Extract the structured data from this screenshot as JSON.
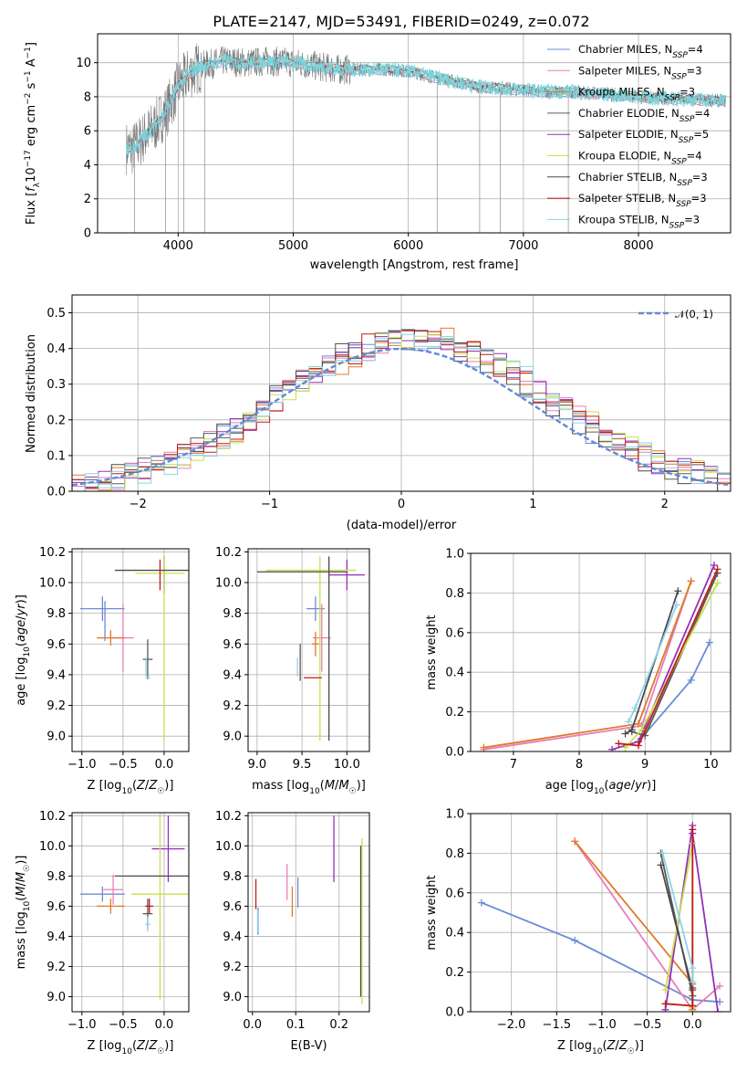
{
  "title": "PLATE=2147, MJD=53491, FIBERID=0249, z=0.072",
  "colors": {
    "chabrier_miles": "#6b8bd6",
    "salpeter_miles": "#e77fb9",
    "kroupa_miles": "#e0792a",
    "chabrier_elodie": "#5a5a5a",
    "salpeter_elodie": "#9330b8",
    "kroupa_elodie": "#c8e04a",
    "chabrier_stelib": "#4a4a4a",
    "salpeter_stelib": "#c21a1a",
    "kroupa_stelib": "#8cd4e6",
    "normal_curve": "#5f8ad8",
    "data_spectrum": "#7a7a7a",
    "model_cyan": "#78d7e0"
  },
  "chart_data": [
    {
      "id": "spectrum",
      "type": "line",
      "xlabel": "wavelength [Angstrom, rest frame]",
      "ylabel": "Flux [fλ10⁻¹⁷ erg cm⁻² s⁻¹ A⁻¹]",
      "xlim": [
        3300,
        8800
      ],
      "ylim": [
        0,
        11.7
      ],
      "xticks": [
        "4000",
        "5000",
        "6000",
        "7000",
        "8000"
      ],
      "xtick_values": [
        4000,
        5000,
        6000,
        7000,
        8000
      ],
      "yticks": [
        "0",
        "2",
        "4",
        "6",
        "8",
        "10"
      ],
      "ytick_values": [
        0,
        2,
        4,
        6,
        8,
        10
      ],
      "legend_position": "right",
      "legend": [
        "Chabrier MILES, N_SSP=4",
        "Salpeter MILES, N_SSP=3",
        "Kroupa MILES, N_SSP=3",
        "Chabrier ELODIE, N_SSP=4",
        "Salpeter ELODIE, N_SSP=5",
        "Kroupa ELODIE, N_SSP=4",
        "Chabrier STELIB, N_SSP=3",
        "Salpeter STELIB, N_SSP=3",
        "Kroupa STELIB, N_SSP=3"
      ],
      "continuum": {
        "x": [
          3550,
          3600,
          3700,
          3800,
          3900,
          4000,
          4100,
          4200,
          4400,
          4600,
          4800,
          5000,
          5200,
          5400,
          5600,
          5800,
          6000,
          6200,
          6400,
          6600,
          6800,
          7000,
          7200,
          7400,
          7600,
          7800,
          8000,
          8200,
          8400,
          8600,
          8750
        ],
        "y": [
          5.0,
          4.9,
          5.6,
          6.3,
          7.2,
          8.6,
          9.4,
          9.8,
          10.1,
          10.0,
          10.1,
          10.0,
          9.8,
          9.6,
          9.6,
          9.6,
          9.5,
          9.2,
          8.9,
          8.6,
          8.5,
          8.4,
          8.3,
          8.3,
          8.2,
          8.1,
          8.0,
          7.9,
          7.85,
          7.8,
          7.75
        ]
      }
    },
    {
      "id": "residuals",
      "type": "step",
      "xlabel": "(data-model)/error",
      "ylabel": "Normed distribution",
      "xlim": [
        -2.5,
        2.5
      ],
      "ylim": [
        0,
        0.55
      ],
      "xticks": [
        "−2",
        "−1",
        "0",
        "1",
        "2"
      ],
      "xtick_values": [
        -2,
        -1,
        0,
        1,
        2
      ],
      "yticks": [
        "0.0",
        "0.1",
        "0.2",
        "0.3",
        "0.4",
        "0.5"
      ],
      "ytick_values": [
        0,
        0.1,
        0.2,
        0.3,
        0.4,
        0.5
      ],
      "legend": [
        "𝒩(0, 1)"
      ],
      "legend_position": "top-right",
      "bin_width": 0.1
    },
    {
      "id": "age_vs_Z",
      "type": "errorbar",
      "xlabel": "Z [log10(Z/Z☉)]",
      "ylabel": "age [log10(age/yr)]",
      "xlim": [
        -1.12,
        0.3
      ],
      "ylim": [
        8.9,
        10.22
      ],
      "xticks": [
        "−1.0",
        "−0.5",
        "0.0"
      ],
      "xtick_values": [
        -1.0,
        -0.5,
        0.0
      ],
      "yticks": [
        "9.0",
        "9.2",
        "9.4",
        "9.6",
        "9.8",
        "10.0",
        "10.2"
      ],
      "ytick_values": [
        9.0,
        9.2,
        9.4,
        9.6,
        9.8,
        10.0,
        10.2
      ],
      "points": [
        {
          "x": -0.75,
          "y": 9.83,
          "xerr": 0.27,
          "yerr": 0.08,
          "c": "chabrier_miles"
        },
        {
          "x": -0.72,
          "y": 9.75,
          "xerr": 0.0,
          "yerr": 0.13,
          "c": "chabrier_miles"
        },
        {
          "x": -0.5,
          "y": 9.64,
          "xerr": 0.13,
          "yerr": 0.22,
          "c": "salpeter_miles"
        },
        {
          "x": -0.65,
          "y": 9.64,
          "xerr": 0.17,
          "yerr": 0.05,
          "c": "kroupa_miles"
        },
        {
          "x": -0.2,
          "y": 9.5,
          "xerr": 0.06,
          "yerr": 0.13,
          "c": "chabrier_elodie"
        },
        {
          "x": 0.0,
          "y": 10.05,
          "xerr": 0.0,
          "yerr": 0.12,
          "c": "salpeter_elodie"
        },
        {
          "x": 0.0,
          "y": 9.57,
          "xerr": 0.0,
          "yerr": 0.6,
          "c": "kroupa_elodie"
        },
        {
          "x": -0.15,
          "y": 10.08,
          "xerr": 0.45,
          "yerr": 0.0,
          "c": "chabrier_stelib"
        },
        {
          "x": -0.05,
          "y": 10.06,
          "xerr": 0.3,
          "yerr": 0.0,
          "c": "kroupa_elodie"
        },
        {
          "x": -0.05,
          "y": 10.05,
          "xerr": 0.0,
          "yerr": 0.1,
          "c": "salpeter_stelib"
        },
        {
          "x": -0.2,
          "y": 9.38,
          "xerr": 0.03,
          "yerr": 0.0,
          "c": "kroupa_stelib"
        },
        {
          "x": -0.22,
          "y": 9.45,
          "xerr": 0.0,
          "yerr": 0.06,
          "c": "kroupa_stelib"
        }
      ]
    },
    {
      "id": "age_vs_mass",
      "type": "errorbar",
      "xlabel": "mass [log10(M/M☉)]",
      "ylabel": "",
      "xlim": [
        8.9,
        10.25
      ],
      "ylim": [
        8.9,
        10.22
      ],
      "xticks": [
        "9.0",
        "9.5",
        "10.0"
      ],
      "xtick_values": [
        9.0,
        9.5,
        10.0
      ],
      "yticks": [
        "9.0",
        "9.2",
        "9.4",
        "9.6",
        "9.8",
        "10.0",
        "10.2"
      ],
      "ytick_values": [
        9.0,
        9.2,
        9.4,
        9.6,
        9.8,
        10.0,
        10.2
      ],
      "points": [
        {
          "x": 9.65,
          "y": 9.83,
          "xerr": 0.1,
          "yerr": 0.08,
          "c": "chabrier_miles"
        },
        {
          "x": 9.72,
          "y": 9.64,
          "xerr": 0.1,
          "yerr": 0.22,
          "c": "salpeter_miles"
        },
        {
          "x": 9.65,
          "y": 9.6,
          "xerr": 0.04,
          "yerr": 0.08,
          "c": "kroupa_miles"
        },
        {
          "x": 9.48,
          "y": 9.48,
          "xerr": 0.0,
          "yerr": 0.12,
          "c": "chabrier_elodie"
        },
        {
          "x": 10.0,
          "y": 10.05,
          "xerr": 0.2,
          "yerr": 0.1,
          "c": "salpeter_elodie"
        },
        {
          "x": 9.7,
          "y": 9.57,
          "xerr": 0.0,
          "yerr": 0.6,
          "c": "kroupa_elodie"
        },
        {
          "x": 9.5,
          "y": 10.07,
          "xerr": 0.5,
          "yerr": 0.0,
          "c": "chabrier_stelib"
        },
        {
          "x": 9.6,
          "y": 10.08,
          "xerr": 0.5,
          "yerr": 0.0,
          "c": "kroupa_elodie"
        },
        {
          "x": 9.8,
          "y": 9.57,
          "xerr": 0.0,
          "yerr": 0.6,
          "c": "chabrier_stelib"
        },
        {
          "x": 9.62,
          "y": 9.38,
          "xerr": 0.1,
          "yerr": 0.0,
          "c": "salpeter_stelib"
        },
        {
          "x": 9.45,
          "y": 9.45,
          "xerr": 0.0,
          "yerr": 0.06,
          "c": "kroupa_stelib"
        }
      ]
    },
    {
      "id": "weight_vs_age",
      "type": "line",
      "xlabel": "age [log10(age/yr)]",
      "ylabel": "mass weight",
      "xlim": [
        6.35,
        10.3
      ],
      "ylim": [
        0,
        1.0
      ],
      "xticks": [
        "7",
        "8",
        "9",
        "10"
      ],
      "xtick_values": [
        7,
        8,
        9,
        10
      ],
      "yticks": [
        "0.0",
        "0.2",
        "0.4",
        "0.6",
        "0.8",
        "1.0"
      ],
      "ytick_values": [
        0,
        0.2,
        0.4,
        0.6,
        0.8,
        1.0
      ],
      "series": [
        {
          "c": "chabrier_miles",
          "x": [
            8.9,
            9.7,
            9.98
          ],
          "y": [
            0.05,
            0.36,
            0.55
          ]
        },
        {
          "c": "salpeter_miles",
          "x": [
            6.55,
            8.95,
            9.7
          ],
          "y": [
            0.01,
            0.13,
            0.86
          ]
        },
        {
          "c": "kroupa_miles",
          "x": [
            6.55,
            8.9,
            9.7
          ],
          "y": [
            0.02,
            0.14,
            0.86
          ]
        },
        {
          "c": "chabrier_elodie",
          "x": [
            8.8,
            9.0,
            10.1
          ],
          "y": [
            0.1,
            0.08,
            0.9
          ]
        },
        {
          "c": "salpeter_elodie",
          "x": [
            8.5,
            8.9,
            10.05
          ],
          "y": [
            0.01,
            0.05,
            0.94
          ]
        },
        {
          "c": "kroupa_elodie",
          "x": [
            8.7,
            8.95,
            10.1
          ],
          "y": [
            0.02,
            0.11,
            0.85
          ]
        },
        {
          "c": "chabrier_stelib",
          "x": [
            8.7,
            8.8,
            9.5
          ],
          "y": [
            0.09,
            0.11,
            0.81
          ]
        },
        {
          "c": "salpeter_stelib",
          "x": [
            8.6,
            8.9,
            10.1
          ],
          "y": [
            0.04,
            0.03,
            0.92
          ]
        },
        {
          "c": "kroupa_stelib",
          "x": [
            8.75,
            8.85,
            9.48
          ],
          "y": [
            0.15,
            0.22,
            0.74
          ]
        }
      ]
    },
    {
      "id": "mass_vs_Z",
      "type": "errorbar",
      "xlabel": "Z [log10(Z/Z☉)]",
      "ylabel": "mass [log10(M/M☉)]",
      "xlim": [
        -1.12,
        0.3
      ],
      "ylim": [
        8.9,
        10.22
      ],
      "xticks": [
        "−1.0",
        "−0.5",
        "0.0"
      ],
      "xtick_values": [
        -1.0,
        -0.5,
        0.0
      ],
      "yticks": [
        "9.0",
        "9.2",
        "9.4",
        "9.6",
        "9.8",
        "10.0",
        "10.2"
      ],
      "ytick_values": [
        9.0,
        9.2,
        9.4,
        9.6,
        9.8,
        10.0,
        10.2
      ],
      "points": [
        {
          "x": -0.75,
          "y": 9.68,
          "xerr": 0.27,
          "yerr": 0.05,
          "c": "chabrier_miles"
        },
        {
          "x": -0.62,
          "y": 9.71,
          "xerr": 0.12,
          "yerr": 0.1,
          "c": "salpeter_miles"
        },
        {
          "x": -0.65,
          "y": 9.6,
          "xerr": 0.17,
          "yerr": 0.05,
          "c": "kroupa_miles"
        },
        {
          "x": -0.2,
          "y": 9.55,
          "xerr": 0.06,
          "yerr": 0.1,
          "c": "chabrier_elodie"
        },
        {
          "x": 0.05,
          "y": 9.98,
          "xerr": 0.2,
          "yerr": 0.22,
          "c": "salpeter_elodie"
        },
        {
          "x": -0.05,
          "y": 9.68,
          "xerr": 0.35,
          "yerr": 0.7,
          "c": "kroupa_elodie"
        },
        {
          "x": -0.15,
          "y": 9.8,
          "xerr": 0.45,
          "yerr": 0.0,
          "c": "chabrier_stelib"
        },
        {
          "x": -0.18,
          "y": 9.6,
          "xerr": 0.05,
          "yerr": 0.05,
          "c": "salpeter_stelib"
        },
        {
          "x": -0.2,
          "y": 9.48,
          "xerr": 0.03,
          "yerr": 0.05,
          "c": "kroupa_stelib"
        }
      ]
    },
    {
      "id": "mass_vs_ebv",
      "type": "errorbar",
      "xlabel": "E(B-V)",
      "ylabel": "",
      "xlim": [
        -0.01,
        0.27
      ],
      "ylim": [
        8.9,
        10.22
      ],
      "xticks": [
        "0.0",
        "0.1",
        "0.2"
      ],
      "xtick_values": [
        0.0,
        0.1,
        0.2
      ],
      "yticks": [
        "9.0",
        "9.2",
        "9.4",
        "9.6",
        "9.8",
        "10.0",
        "10.2"
      ],
      "ytick_values": [
        9.0,
        9.2,
        9.4,
        9.6,
        9.8,
        10.0,
        10.2
      ],
      "points": [
        {
          "x": 0.013,
          "y": 9.5,
          "xerr": 0.0,
          "yerr": 0.09,
          "c": "chabrier_miles"
        },
        {
          "x": 0.08,
          "y": 9.76,
          "xerr": 0.0,
          "yerr": 0.12,
          "c": "salpeter_miles"
        },
        {
          "x": 0.092,
          "y": 9.63,
          "xerr": 0.0,
          "yerr": 0.1,
          "c": "kroupa_miles"
        },
        {
          "x": 0.105,
          "y": 9.69,
          "xerr": 0.0,
          "yerr": 0.1,
          "c": "chabrier_miles"
        },
        {
          "x": 0.188,
          "y": 9.98,
          "xerr": 0.0,
          "yerr": 0.22,
          "c": "salpeter_elodie"
        },
        {
          "x": 0.253,
          "y": 9.5,
          "xerr": 0.0,
          "yerr": 0.55,
          "c": "kroupa_elodie"
        },
        {
          "x": 0.25,
          "y": 9.5,
          "xerr": 0.0,
          "yerr": 0.5,
          "c": "chabrier_stelib"
        },
        {
          "x": 0.008,
          "y": 9.68,
          "xerr": 0.0,
          "yerr": 0.1,
          "c": "salpeter_stelib"
        },
        {
          "x": 0.012,
          "y": 9.5,
          "xerr": 0.0,
          "yerr": 0.07,
          "c": "kroupa_stelib"
        }
      ]
    },
    {
      "id": "weight_vs_Z",
      "type": "line",
      "xlabel": "Z [log10(Z/Z☉)]",
      "ylabel": "mass weight",
      "xlim": [
        -2.45,
        0.42
      ],
      "ylim": [
        0,
        1.0
      ],
      "xticks": [
        "−2.0",
        "−1.5",
        "−1.0",
        "−0.5",
        "0.0"
      ],
      "xtick_values": [
        -2.0,
        -1.5,
        -1.0,
        -0.5,
        0.0
      ],
      "yticks": [
        "0.0",
        "0.2",
        "0.4",
        "0.6",
        "0.8",
        "1.0"
      ],
      "ytick_values": [
        0,
        0.2,
        0.4,
        0.6,
        0.8,
        1.0
      ],
      "series": [
        {
          "c": "chabrier_miles",
          "x": [
            -2.33,
            -1.3,
            0.0,
            0.3
          ],
          "y": [
            0.55,
            0.36,
            0.06,
            0.05
          ]
        },
        {
          "c": "salpeter_miles",
          "x": [
            -1.3,
            0.0,
            0.3
          ],
          "y": [
            0.86,
            0.01,
            0.13
          ]
        },
        {
          "c": "kroupa_miles",
          "x": [
            -1.3,
            0.0,
            0.0
          ],
          "y": [
            0.86,
            0.14,
            0.01
          ]
        },
        {
          "c": "chabrier_elodie",
          "x": [
            -0.35,
            0.0,
            0.0
          ],
          "y": [
            0.8,
            0.08,
            0.12
          ]
        },
        {
          "c": "salpeter_elodie",
          "x": [
            -0.3,
            0.0,
            0.0,
            0.28
          ],
          "y": [
            0.01,
            0.94,
            0.9,
            0.0
          ]
        },
        {
          "c": "kroupa_elodie",
          "x": [
            -0.3,
            0.0,
            0.0
          ],
          "y": [
            0.11,
            0.85,
            0.02
          ]
        },
        {
          "c": "chabrier_stelib",
          "x": [
            -0.35,
            0.0,
            0.0
          ],
          "y": [
            0.74,
            0.11,
            0.03
          ]
        },
        {
          "c": "salpeter_stelib",
          "x": [
            -0.3,
            0.0,
            0.0
          ],
          "y": [
            0.04,
            0.03,
            0.92
          ]
        },
        {
          "c": "kroupa_stelib",
          "x": [
            -0.33,
            0.0,
            0.0
          ],
          "y": [
            0.8,
            0.22,
            0.15
          ]
        }
      ]
    }
  ]
}
